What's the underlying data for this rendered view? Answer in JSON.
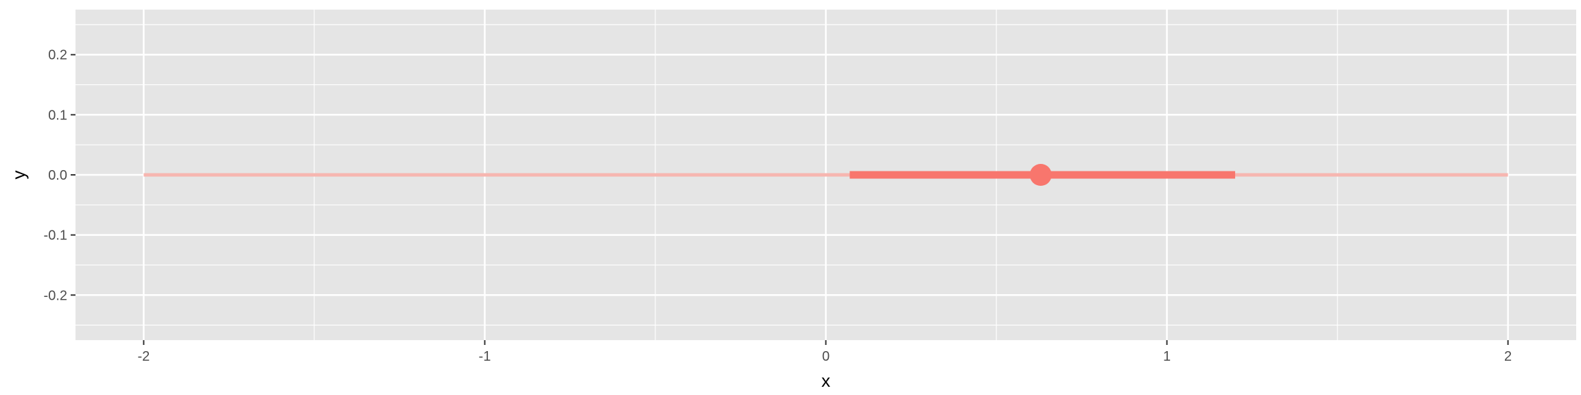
{
  "chart_data": {
    "type": "interval",
    "title": "",
    "xlabel": "x",
    "ylabel": "y",
    "xlim": [
      -2.2,
      2.2
    ],
    "ylim": [
      -0.275,
      0.275
    ],
    "x_ticks": [
      -2,
      -1,
      0,
      1,
      2
    ],
    "x_tick_labels": [
      "-2",
      "-1",
      "0",
      "1",
      "2"
    ],
    "y_ticks": [
      -0.2,
      -0.1,
      0.0,
      0.1,
      0.2
    ],
    "y_tick_labels": [
      "-0.2",
      "-0.1",
      "0.0",
      "0.1",
      "0.2"
    ],
    "grid": true,
    "legend": "none",
    "points": [
      {
        "x": 0.63,
        "y": 0.0,
        "inner": [
          0.07,
          1.2
        ],
        "outer": [
          -2.0,
          2.0
        ]
      }
    ],
    "colors": {
      "panel": "#e5e5e5",
      "grid": "#ffffff",
      "series": "#f8766d",
      "outer_interval": "#f7b6b0"
    }
  }
}
